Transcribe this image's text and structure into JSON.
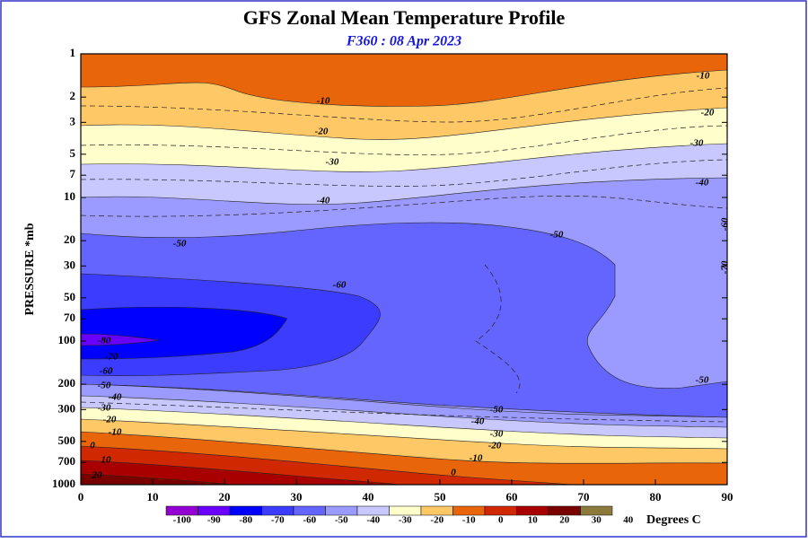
{
  "chart_data": {
    "type": "contour",
    "title": "GFS Zonal Mean Temperature Profile",
    "subtitle": "F360 : 08 Apr 2023",
    "ylabel": "PRESSURE *mb",
    "xlim": [
      0,
      90
    ],
    "xticks": [
      0,
      10,
      20,
      30,
      40,
      50,
      60,
      70,
      80,
      90
    ],
    "ylim": [
      1,
      1000
    ],
    "log_y": true,
    "y_inverted": true,
    "yticks": [
      1,
      2,
      3,
      5,
      7,
      10,
      20,
      30,
      50,
      70,
      100,
      200,
      300,
      500,
      700,
      1000
    ],
    "colorbar": {
      "label": "Degrees C",
      "levels": [
        -100,
        -90,
        -80,
        -70,
        -60,
        -50,
        -40,
        -30,
        -20,
        -10,
        0,
        10,
        20,
        30,
        40
      ],
      "colors": [
        "#9400d3",
        "#6a00ff",
        "#0000ff",
        "#3c3cff",
        "#6464ff",
        "#9a9aff",
        "#c8c8ff",
        "#ffffcc",
        "#ffc866",
        "#e8650a",
        "#d02800",
        "#a80000",
        "#7a0000",
        "#8c7a3c"
      ]
    },
    "contour_labels": [
      -10,
      -20,
      -30,
      -40,
      -50,
      -60,
      -80,
      -70,
      -60,
      -50,
      -40,
      -30,
      -20,
      -10,
      0,
      10,
      20,
      -10,
      -20,
      -30,
      -40,
      -60,
      -70,
      -50,
      -50,
      -50,
      -40,
      -30,
      -20,
      -10,
      0
    ]
  }
}
